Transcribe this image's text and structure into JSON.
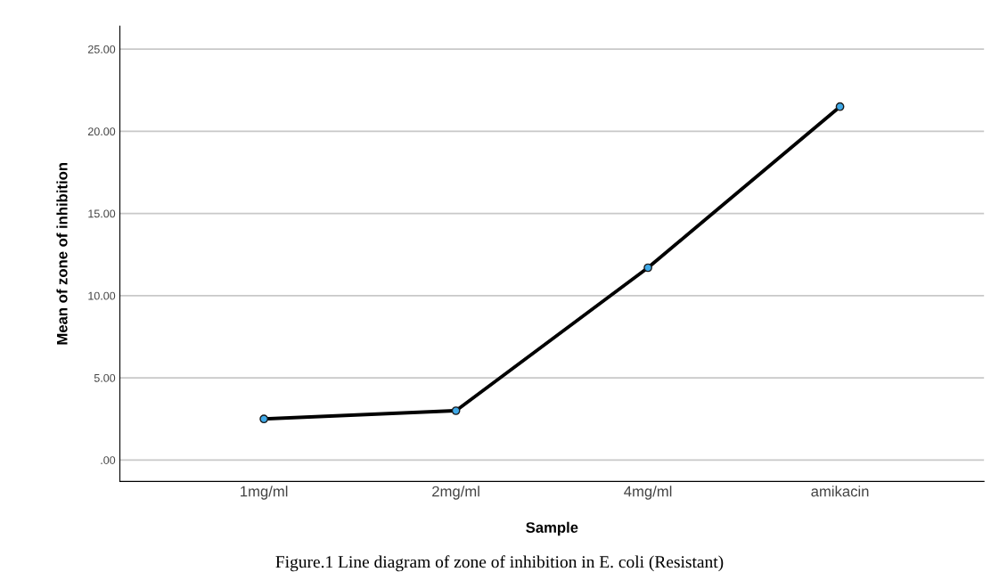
{
  "chart_data": {
    "type": "line",
    "xlabel": "Sample",
    "ylabel": "Mean of zone of inhibition",
    "categories": [
      "1mg/ml",
      "2mg/ml",
      "4mg/ml",
      "amikacin"
    ],
    "series": [
      {
        "color": "#000000",
        "values": [
          2.5,
          3.0,
          11.7,
          21.5
        ]
      }
    ],
    "marker": "circle",
    "line_style": "solid",
    "grid": "y",
    "ylim": [
      -1.3,
      26.4
    ],
    "yticks": [
      {
        "value": 0,
        "label": ".00"
      },
      {
        "value": 5,
        "label": "5.00"
      },
      {
        "value": 10,
        "label": "10.00"
      },
      {
        "value": 15,
        "label": "15.00"
      },
      {
        "value": 20,
        "label": "20.00"
      },
      {
        "value": 25,
        "label": "25.00"
      }
    ],
    "annotations": [
      "Figure.1 Line diagram of zone of inhibition in E. coli (Resistant)"
    ]
  }
}
